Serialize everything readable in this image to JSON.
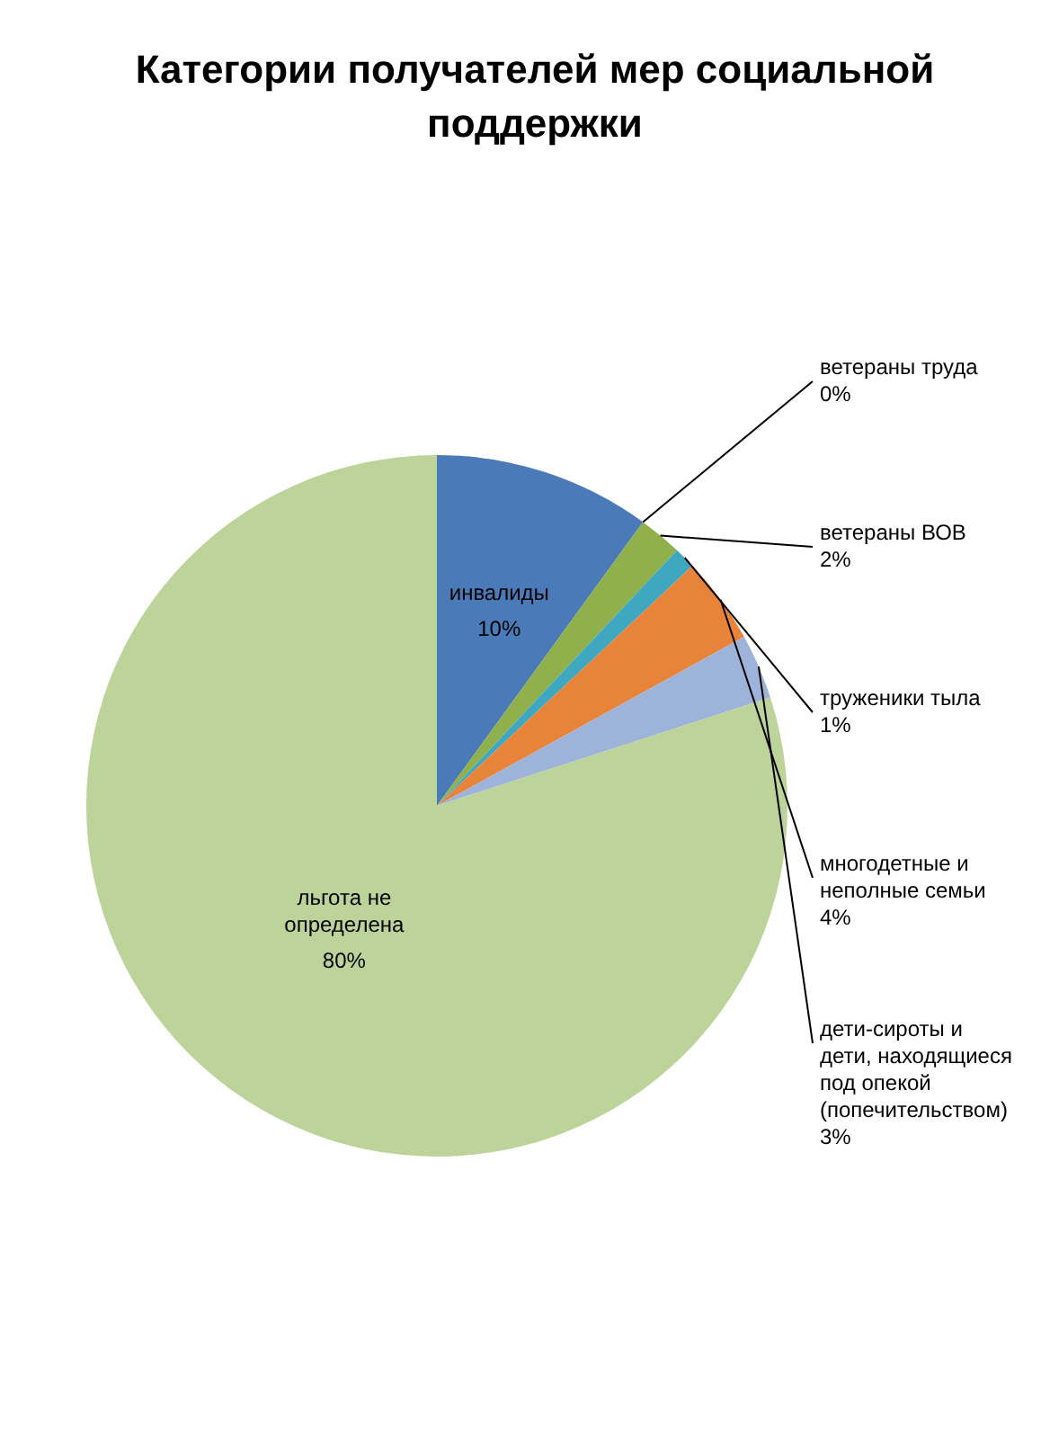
{
  "chart_data": {
    "type": "pie",
    "title": "Категории получателей  мер социальной поддержки",
    "categories": [
      "инвалиды",
      "ветераны труда",
      "ветераны ВОВ",
      "труженики тыла",
      "многодетные и неполные семьи",
      "дети-сироты и дети, находящиеся под опекой (попечительством)",
      "льгота не определена"
    ],
    "values": [
      10,
      0,
      2,
      1,
      4,
      3,
      80
    ],
    "value_labels": [
      "10%",
      "0%",
      "2%",
      "1%",
      "4%",
      "3%",
      "80%"
    ],
    "colors": [
      "#4a7ab8",
      "#b94a48",
      "#8fb04a",
      "#3fa7c0",
      "#e8843a",
      "#9db3d9",
      "#bcd39a"
    ],
    "legend": false
  }
}
